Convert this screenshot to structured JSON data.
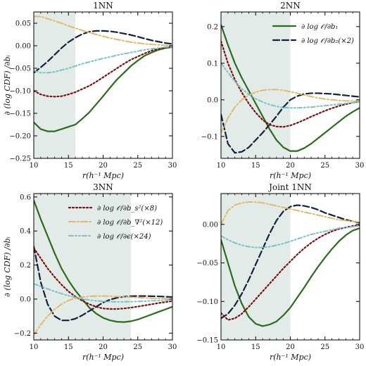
{
  "colors": {
    "b1": "#2d6a1f",
    "b2": "#14213d",
    "bs2": "#7a1010",
    "bnabla2": "#e2b96a",
    "eps": "#7cc3c0",
    "shade": "#e3ebe9"
  },
  "legend_labels": {
    "b1": "∂ log 𝒪/∂b₁",
    "b2": "∂ log 𝒪/∂b₂(×2)",
    "bs2": "∂ log 𝒪/∂b_s²(×8)",
    "bnabla2": "∂ log 𝒪/∂b_∇²(×12)",
    "eps": "∂ log 𝒪/∂ϵ(×24)"
  },
  "chart_data": [
    {
      "type": "line",
      "title": "1NN",
      "xlabel": "r(h⁻¹ Mpc)",
      "ylabel": "∂ (log CDF) /∂bᵢ",
      "xlim": [
        10,
        30
      ],
      "ylim": [
        -0.25,
        0.075
      ],
      "xticks": [
        10,
        15,
        20,
        25,
        30
      ],
      "yticks": [
        0.05,
        0.0,
        -0.05,
        -0.1,
        -0.15,
        -0.2,
        -0.25
      ],
      "ytick_labels": [
        "0.05",
        "0.00",
        "−0.05",
        "−0.10",
        "−0.15",
        "−0.20",
        "−0.25"
      ],
      "shaded_x": [
        10,
        16
      ],
      "x": [
        10,
        11,
        12,
        13,
        14,
        15,
        16,
        17,
        18,
        19,
        20,
        21,
        22,
        23,
        24,
        25,
        26,
        27,
        28,
        29,
        30
      ],
      "series": [
        {
          "key": "b1",
          "values": [
            -0.17,
            -0.185,
            -0.19,
            -0.19,
            -0.185,
            -0.18,
            -0.175,
            -0.162,
            -0.148,
            -0.13,
            -0.112,
            -0.093,
            -0.075,
            -0.06,
            -0.045,
            -0.033,
            -0.022,
            -0.015,
            -0.009,
            -0.005,
            -0.003
          ]
        },
        {
          "key": "b2",
          "values": [
            -0.06,
            -0.048,
            -0.035,
            -0.02,
            -0.005,
            0.008,
            0.018,
            0.026,
            0.031,
            0.033,
            0.033,
            0.032,
            0.03,
            0.027,
            0.024,
            0.02,
            0.016,
            0.012,
            0.009,
            0.006,
            0.004
          ]
        },
        {
          "key": "bs2",
          "values": [
            -0.1,
            -0.108,
            -0.112,
            -0.113,
            -0.112,
            -0.108,
            -0.103,
            -0.096,
            -0.089,
            -0.08,
            -0.07,
            -0.06,
            -0.05,
            -0.04,
            -0.031,
            -0.024,
            -0.017,
            -0.011,
            -0.007,
            -0.004,
            -0.002
          ]
        },
        {
          "key": "bnabla2",
          "values": [
            0.065,
            0.065,
            0.06,
            0.055,
            0.05,
            0.044,
            0.039,
            0.034,
            0.029,
            0.025,
            0.021,
            0.017,
            0.014,
            0.011,
            0.008,
            0.006,
            0.004,
            0.003,
            0.002,
            0.001,
            0.0
          ]
        },
        {
          "key": "eps",
          "values": [
            -0.055,
            -0.06,
            -0.06,
            -0.058,
            -0.054,
            -0.05,
            -0.045,
            -0.04,
            -0.036,
            -0.032,
            -0.028,
            -0.025,
            -0.021,
            -0.018,
            -0.015,
            -0.012,
            -0.009,
            -0.007,
            -0.005,
            -0.003,
            -0.002
          ]
        }
      ]
    },
    {
      "type": "line",
      "title": "2NN",
      "xlabel": "r(h⁻¹ Mpc)",
      "ylabel": "",
      "xlim": [
        10,
        30
      ],
      "ylim": [
        -0.16,
        0.24
      ],
      "xticks": [
        10,
        15,
        20,
        25,
        30
      ],
      "yticks": [
        0.2,
        0.1,
        0.0,
        -0.1
      ],
      "ytick_labels": [
        "0.2",
        "0.1",
        "0.0",
        "−0.1"
      ],
      "shaded_x": [
        10,
        20
      ],
      "x": [
        10,
        11,
        12,
        13,
        14,
        15,
        16,
        17,
        18,
        19,
        20,
        21,
        22,
        23,
        24,
        25,
        26,
        27,
        28,
        29,
        30
      ],
      "series": [
        {
          "key": "b1",
          "values": [
            0.205,
            0.15,
            0.1,
            0.06,
            0.025,
            -0.01,
            -0.045,
            -0.08,
            -0.11,
            -0.13,
            -0.14,
            -0.14,
            -0.132,
            -0.12,
            -0.105,
            -0.09,
            -0.075,
            -0.06,
            -0.045,
            -0.033,
            -0.022
          ]
        },
        {
          "key": "b2",
          "values": [
            -0.04,
            -0.12,
            -0.145,
            -0.142,
            -0.13,
            -0.11,
            -0.09,
            -0.068,
            -0.045,
            -0.02,
            0.0,
            0.01,
            0.016,
            0.018,
            0.018,
            0.017,
            0.016,
            0.014,
            0.012,
            0.01,
            0.008
          ]
        },
        {
          "key": "bs2",
          "values": [
            0.16,
            0.1,
            0.055,
            0.02,
            -0.01,
            -0.035,
            -0.055,
            -0.068,
            -0.073,
            -0.074,
            -0.07,
            -0.063,
            -0.055,
            -0.046,
            -0.038,
            -0.03,
            -0.023,
            -0.017,
            -0.012,
            -0.008,
            -0.005
          ]
        },
        {
          "key": "bnabla2",
          "values": [
            -0.09,
            -0.05,
            -0.02,
            0.0,
            0.013,
            0.021,
            0.026,
            0.028,
            0.028,
            0.026,
            0.022,
            0.018,
            0.013,
            0.009,
            0.005,
            0.002,
            0.0,
            -0.002,
            -0.003,
            -0.003,
            -0.003
          ]
        },
        {
          "key": "eps",
          "values": [
            0.1,
            0.075,
            0.05,
            0.03,
            0.015,
            0.003,
            -0.006,
            -0.013,
            -0.018,
            -0.021,
            -0.022,
            -0.022,
            -0.021,
            -0.02,
            -0.018,
            -0.016,
            -0.014,
            -0.012,
            -0.01,
            -0.008,
            -0.006
          ]
        }
      ]
    },
    {
      "type": "line",
      "title": "3NN",
      "xlabel": "r(h⁻¹ Mpc)",
      "ylabel": "∂ (log CDF) /∂bᵢ",
      "xlim": [
        10,
        30
      ],
      "ylim": [
        -0.24,
        0.62
      ],
      "xticks": [
        10,
        15,
        20,
        25,
        30
      ],
      "yticks": [
        0.6,
        0.4,
        0.2,
        0.0,
        -0.2
      ],
      "ytick_labels": [
        "0.6",
        "0.4",
        "0.2",
        "0.0",
        "−0.2"
      ],
      "shaded_x": [
        10,
        24
      ],
      "x": [
        10,
        11,
        12,
        13,
        14,
        15,
        16,
        17,
        18,
        19,
        20,
        21,
        22,
        23,
        24,
        25,
        26,
        27,
        28,
        29,
        30
      ],
      "series": [
        {
          "key": "b1",
          "values": [
            0.58,
            0.47,
            0.37,
            0.27,
            0.18,
            0.11,
            0.05,
            0.0,
            -0.05,
            -0.085,
            -0.11,
            -0.125,
            -0.133,
            -0.135,
            -0.13,
            -0.12,
            -0.105,
            -0.09,
            -0.075,
            -0.06,
            -0.045
          ]
        },
        {
          "key": "b2",
          "values": [
            0.31,
            0.1,
            -0.03,
            -0.1,
            -0.125,
            -0.125,
            -0.115,
            -0.095,
            -0.07,
            -0.045,
            -0.02,
            -0.003,
            0.008,
            0.014,
            0.017,
            0.018,
            0.018,
            0.017,
            0.016,
            0.014,
            0.012
          ]
        },
        {
          "key": "bs2",
          "values": [
            0.3,
            0.24,
            0.18,
            0.13,
            0.085,
            0.045,
            0.015,
            -0.01,
            -0.03,
            -0.045,
            -0.055,
            -0.058,
            -0.058,
            -0.055,
            -0.05,
            -0.044,
            -0.037,
            -0.03,
            -0.023,
            -0.017,
            -0.012
          ]
        },
        {
          "key": "bnabla2",
          "values": [
            -0.21,
            -0.15,
            -0.1,
            -0.06,
            -0.03,
            -0.008,
            0.005,
            0.012,
            0.016,
            0.018,
            0.018,
            0.017,
            0.015,
            0.013,
            0.011,
            0.009,
            0.007,
            0.005,
            0.004,
            0.003,
            0.002
          ]
        },
        {
          "key": "eps",
          "values": [
            0.09,
            0.075,
            0.06,
            0.045,
            0.032,
            0.02,
            0.01,
            0.002,
            -0.005,
            -0.01,
            -0.013,
            -0.015,
            -0.016,
            -0.016,
            -0.015,
            -0.014,
            -0.012,
            -0.01,
            -0.008,
            -0.006,
            -0.004
          ]
        }
      ]
    },
    {
      "type": "line",
      "title": "Joint 1NN",
      "xlabel": "r(h⁻¹ Mpc)",
      "ylabel": "",
      "xlim": [
        10,
        30
      ],
      "ylim": [
        -0.15,
        0.04
      ],
      "xticks": [
        10,
        15,
        20,
        25,
        30
      ],
      "yticks": [
        0.0,
        -0.05,
        -0.1,
        -0.15
      ],
      "ytick_labels": [
        "0.00",
        "−0.05",
        "−0.10",
        "−0.15"
      ],
      "shaded_x": [
        10,
        20
      ],
      "x": [
        10,
        11,
        12,
        13,
        14,
        15,
        16,
        17,
        18,
        19,
        20,
        21,
        22,
        23,
        24,
        25,
        26,
        27,
        28,
        29,
        30
      ],
      "series": [
        {
          "key": "b1",
          "values": [
            -0.02,
            -0.05,
            -0.08,
            -0.103,
            -0.12,
            -0.129,
            -0.132,
            -0.13,
            -0.126,
            -0.118,
            -0.108,
            -0.095,
            -0.082,
            -0.068,
            -0.055,
            -0.043,
            -0.032,
            -0.022,
            -0.014,
            -0.008,
            -0.005
          ]
        },
        {
          "key": "b2",
          "values": [
            -0.122,
            -0.116,
            -0.105,
            -0.09,
            -0.072,
            -0.052,
            -0.032,
            -0.012,
            0.005,
            0.017,
            0.023,
            0.025,
            0.024,
            0.022,
            0.019,
            0.015,
            0.012,
            0.009,
            0.006,
            0.004,
            0.002
          ]
        },
        {
          "key": "bs2",
          "values": [
            -0.115,
            -0.124,
            -0.122,
            -0.116,
            -0.107,
            -0.097,
            -0.087,
            -0.077,
            -0.067,
            -0.057,
            -0.048,
            -0.039,
            -0.031,
            -0.024,
            -0.018,
            -0.013,
            -0.009,
            -0.006,
            -0.004,
            -0.002,
            -0.001
          ]
        },
        {
          "key": "bnabla2",
          "values": [
            0.0,
            0.018,
            0.025,
            0.028,
            0.029,
            0.029,
            0.028,
            0.026,
            0.024,
            0.022,
            0.02,
            0.018,
            0.016,
            0.014,
            0.012,
            0.01,
            0.008,
            0.006,
            0.005,
            0.004,
            0.003
          ]
        },
        {
          "key": "eps",
          "values": [
            -0.015,
            -0.02,
            -0.024,
            -0.027,
            -0.029,
            -0.03,
            -0.03,
            -0.029,
            -0.027,
            -0.025,
            -0.022,
            -0.019,
            -0.016,
            -0.013,
            -0.011,
            -0.009,
            -0.007,
            -0.005,
            -0.004,
            -0.003,
            -0.002
          ]
        }
      ]
    }
  ]
}
